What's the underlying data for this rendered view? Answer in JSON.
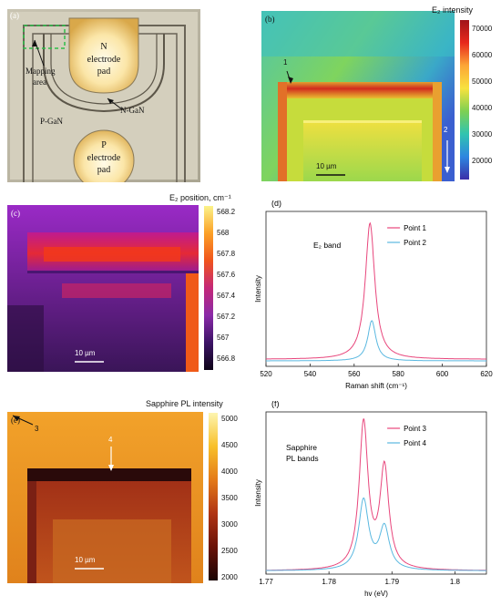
{
  "panels": {
    "a": {
      "label": "(a)",
      "n_pad": [
        "N",
        "electrode",
        "pad"
      ],
      "p_pad": [
        "P",
        "electrode",
        "pad"
      ],
      "mapping_area": [
        "Mapping",
        "area"
      ],
      "ngan": "N-GaN",
      "pgan": "P-GaN"
    },
    "b": {
      "label": "(b)",
      "cbar_title": "E₂ intensity",
      "cbar_ticks": [
        "70000",
        "60000",
        "50000",
        "40000",
        "30000",
        "20000"
      ],
      "point1": "1",
      "point2": "2",
      "scalebar": "10 µm"
    },
    "c": {
      "label": "(c)",
      "cbar_title": "E₂ position, cm⁻¹",
      "cbar_ticks": [
        "568.2",
        "568",
        "567.8",
        "567.6",
        "567.4",
        "567.2",
        "567",
        "566.8"
      ],
      "scalebar": "10 µm"
    },
    "e": {
      "label": "(e)",
      "cbar_title": "Sapphire PL intensity",
      "cbar_ticks": [
        "5000",
        "4500",
        "4000",
        "3500",
        "3000",
        "2500",
        "2000"
      ],
      "point3": "3",
      "point4": "4",
      "scalebar": "10 µm"
    }
  },
  "colors": {
    "series1": "#e8467c",
    "series2": "#5ab8e0"
  },
  "chart_data": [
    {
      "type": "line",
      "panel": "(d)",
      "annotation": "E₂ band",
      "xlabel": "Raman shift (cm⁻¹)",
      "ylabel": "Intensity",
      "xlim": [
        520,
        620
      ],
      "ylim": [
        0,
        1
      ],
      "xticks": [
        "520",
        "540",
        "560",
        "580",
        "600",
        "620"
      ],
      "legend_position": "top-right",
      "series": [
        {
          "name": "Point 1",
          "peaks": [
            {
              "center": 567.2,
              "height": 0.88,
              "width": 2.6
            }
          ],
          "baseline": 0.045
        },
        {
          "name": "Point 2",
          "peaks": [
            {
              "center": 568.0,
              "height": 0.26,
              "width": 2.2
            }
          ],
          "baseline": 0.035
        }
      ]
    },
    {
      "type": "line",
      "panel": "(f)",
      "annotation": "Sapphire PL bands",
      "xlabel": "hv (eV)",
      "ylabel": "Intensity",
      "xlim": [
        1.77,
        1.805
      ],
      "ylim": [
        0,
        1
      ],
      "xticks": [
        "1.77",
        "1.78",
        "1.79",
        "1.8"
      ],
      "legend_position": "top-right",
      "series": [
        {
          "name": "Point 3",
          "peaks": [
            {
              "center": 1.7855,
              "height": 0.9,
              "width": 0.00085
            },
            {
              "center": 1.7888,
              "height": 0.62,
              "width": 0.00085
            }
          ],
          "baseline": 0.02
        },
        {
          "name": "Point 4",
          "peaks": [
            {
              "center": 1.7855,
              "height": 0.43,
              "width": 0.00095
            },
            {
              "center": 1.7888,
              "height": 0.26,
              "width": 0.00095
            }
          ],
          "baseline": 0.02
        }
      ]
    }
  ]
}
